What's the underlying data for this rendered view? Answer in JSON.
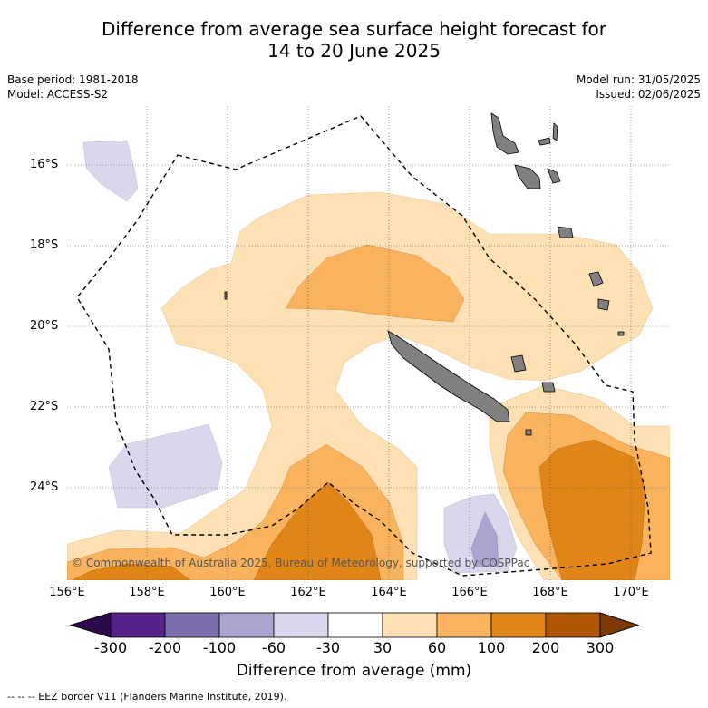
{
  "title_line1": "Difference from average sea surface height forecast for",
  "title_line2": "14 to 20 June 2025",
  "base_period": "Base period: 1981-2018",
  "model": "Model: ACCESS-S2",
  "model_run": "Model run: 31/05/2025",
  "issued": "Issued: 02/06/2025",
  "copyright": "© Commonwealth of Australia 2025, Bureau of Meteorology, supported by COSPPac",
  "lat_ticks": [
    "16°S",
    "18°S",
    "20°S",
    "22°S",
    "24°S"
  ],
  "lon_ticks": [
    "156°E",
    "158°E",
    "160°E",
    "162°E",
    "164°E",
    "166°E",
    "168°E",
    "170°E"
  ],
  "colorbar": {
    "title": "Difference from average (mm)",
    "labels": [
      "-300",
      "-200",
      "-100",
      "-60",
      "-30",
      "30",
      "60",
      "100",
      "200",
      "300"
    ],
    "colors": [
      "#2d0a4e",
      "#54228a",
      "#7d6fad",
      "#aca3cf",
      "#d8d8ea",
      "#ffffff",
      "#fde0b4",
      "#f9b35e",
      "#e08517",
      "#b05706",
      "#7a3a05"
    ]
  },
  "eez_legend": "--  --  -- EEZ border V11 (Flanders Marine Institute, 2019)."
}
